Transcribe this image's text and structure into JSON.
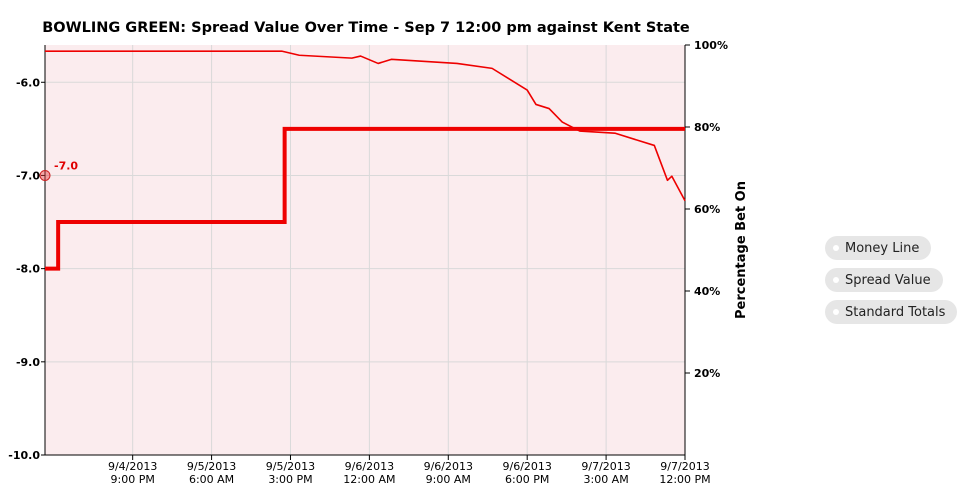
{
  "chart_data": {
    "type": "line",
    "title": "BOWLING GREEN: Spread Value Over Time - Sep 7 12:00 pm against Kent State",
    "y_left": {
      "range": [
        -10.0,
        -5.6
      ],
      "ticks": [
        -6.0,
        -7.0,
        -8.0,
        -9.0,
        -10.0
      ],
      "tick_labels": [
        "-6.0",
        "-7.0",
        "-8.0",
        "-9.0",
        "-10.0"
      ]
    },
    "y_right": {
      "label": "Percentage Bet On",
      "range": [
        0,
        100
      ],
      "ticks": [
        20,
        40,
        60,
        80,
        100
      ],
      "tick_labels": [
        "20%",
        "40%",
        "60%",
        "80%",
        "100%"
      ]
    },
    "x_axis": {
      "range": [
        "9/4/2013 11:00 AM",
        "9/7/2013 12:00 PM"
      ],
      "ticks": [
        "9/4/2013 9:00 PM",
        "9/5/2013 6:00 AM",
        "9/5/2013 3:00 PM",
        "9/6/2013 12:00 AM",
        "9/6/2013 9:00 AM",
        "9/6/2013 6:00 PM",
        "9/7/2013 3:00 AM",
        "9/7/2013 12:00 PM"
      ],
      "tick_labels": [
        [
          "9/4/2013",
          "9:00 PM"
        ],
        [
          "9/5/2013",
          "6:00 AM"
        ],
        [
          "9/5/2013",
          "3:00 PM"
        ],
        [
          "9/6/2013",
          "12:00 AM"
        ],
        [
          "9/6/2013",
          "9:00 AM"
        ],
        [
          "9/6/2013",
          "6:00 PM"
        ],
        [
          "9/7/2013",
          "3:00 AM"
        ],
        [
          "9/7/2013",
          "12:00 PM"
        ]
      ]
    },
    "grid": true,
    "series": [
      {
        "axis": "left",
        "style": "step",
        "color": "#ee0000",
        "points": [
          [
            "9/4/2013 11:00 AM",
            -8.0
          ],
          [
            "9/4/2013 12:30 PM",
            -7.5
          ],
          [
            "9/5/2013 2:20 PM",
            -6.5
          ],
          [
            "9/7/2013 12:00 PM",
            -6.5
          ]
        ]
      },
      {
        "axis": "right",
        "style": "line",
        "color": "#ee0000",
        "points": [
          [
            "9/4/2013 11:00 AM",
            98.5
          ],
          [
            "9/5/2013 2:00 PM",
            98.5
          ],
          [
            "9/5/2013 4:00 PM",
            97.5
          ],
          [
            "9/5/2013 10:00 PM",
            96.8
          ],
          [
            "9/5/2013 11:00 PM",
            97.3
          ],
          [
            "9/6/2013 1:00 AM",
            95.5
          ],
          [
            "9/6/2013 2:30 AM",
            96.5
          ],
          [
            "9/6/2013 10:00 AM",
            95.5
          ],
          [
            "9/6/2013 2:00 PM",
            94.3
          ],
          [
            "9/6/2013 6:00 PM",
            89.0
          ],
          [
            "9/6/2013 7:00 PM",
            85.5
          ],
          [
            "9/6/2013 8:30 PM",
            84.5
          ],
          [
            "9/6/2013 10:00 PM",
            81.2
          ],
          [
            "9/7/2013 12:00 AM",
            79.0
          ],
          [
            "9/7/2013 4:00 AM",
            78.5
          ],
          [
            "9/7/2013 8:30 AM",
            75.5
          ],
          [
            "9/7/2013 10:00 AM",
            67.0
          ],
          [
            "9/7/2013 10:30 AM",
            68.0
          ],
          [
            "9/7/2013 12:00 PM",
            62.0
          ]
        ]
      }
    ],
    "annotations": [
      {
        "text": "-7.0",
        "x": "9/4/2013 11:00 AM",
        "y": -7.0
      }
    ]
  },
  "colors": {
    "line": "#ee0000",
    "plot_fill": "#fbecee",
    "grid": "#d9d9d9",
    "toggle": "#e6e6e6",
    "toggle_selected": "#b7b7f4"
  },
  "toggles": [
    {
      "label": "Money Line",
      "selected": false
    },
    {
      "label": "Spread Value",
      "selected": true
    },
    {
      "label": "Standard Totals",
      "selected": false
    }
  ]
}
